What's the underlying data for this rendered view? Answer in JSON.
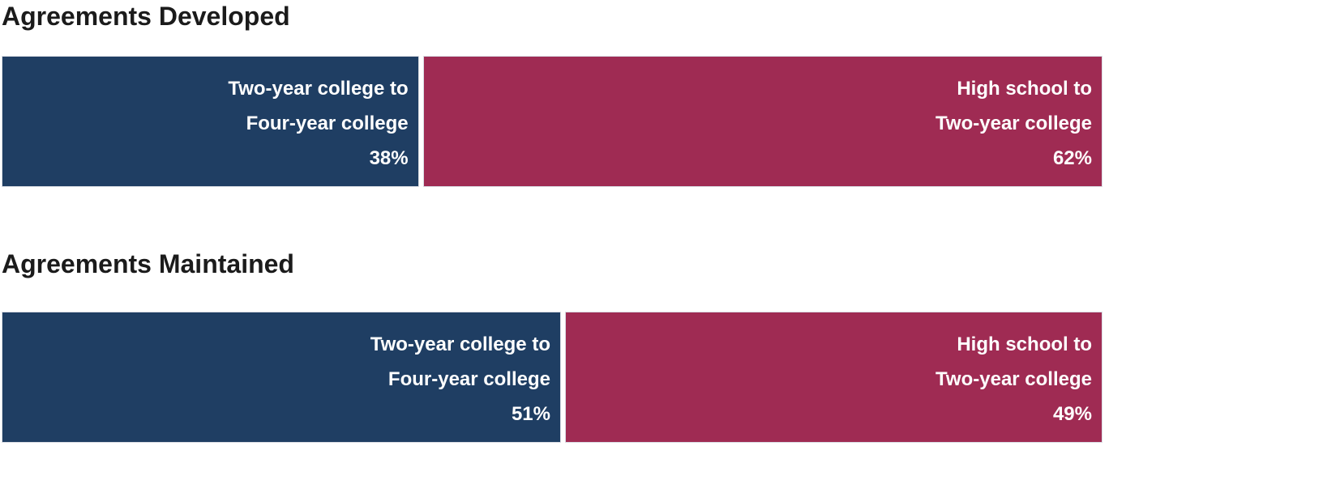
{
  "colors": {
    "background": "#FFFFFF",
    "navy": "#1F3E63",
    "crimson": "#9F2B53",
    "segment_border": "#D9DCE3",
    "title_text": "#1B1B1B",
    "label_text": "#FFFFFF"
  },
  "chart_data": [
    {
      "type": "bar",
      "variant": "100-percent-stacked-horizontal",
      "title": "Agreements Developed",
      "xlabel": "",
      "ylabel": "",
      "xlim": [
        0,
        100
      ],
      "unit": "%",
      "grid": false,
      "legend_position": "none (labels drawn inside segments)",
      "categories": [
        "Two-year college to Four-year college",
        "High school to Two-year college"
      ],
      "values": [
        38,
        62
      ],
      "segments": [
        {
          "name": "two-year-college-to-four-year-college",
          "label_line1": "Two-year college to",
          "label_line2": "Four-year college",
          "value": 38,
          "value_label": "38%",
          "color": "#1F3E63"
        },
        {
          "name": "high-school-to-two-year-college",
          "label_line1": "High school to",
          "label_line2": "Two-year college",
          "value": 62,
          "value_label": "62%",
          "color": "#9F2B53"
        }
      ]
    },
    {
      "type": "bar",
      "variant": "100-percent-stacked-horizontal",
      "title": "Agreements Maintained",
      "xlabel": "",
      "ylabel": "",
      "xlim": [
        0,
        100
      ],
      "unit": "%",
      "grid": false,
      "legend_position": "none (labels drawn inside segments)",
      "categories": [
        "Two-year college to Four-year college",
        "High school to Two-year college"
      ],
      "values": [
        51,
        49
      ],
      "segments": [
        {
          "name": "two-year-college-to-four-year-college",
          "label_line1": "Two-year college to",
          "label_line2": "Four-year college",
          "value": 51,
          "value_label": "51%",
          "color": "#1F3E63"
        },
        {
          "name": "high-school-to-two-year-college",
          "label_line1": "High school to",
          "label_line2": "Two-year college",
          "value": 49,
          "value_label": "49%",
          "color": "#9F2B53"
        }
      ]
    }
  ]
}
